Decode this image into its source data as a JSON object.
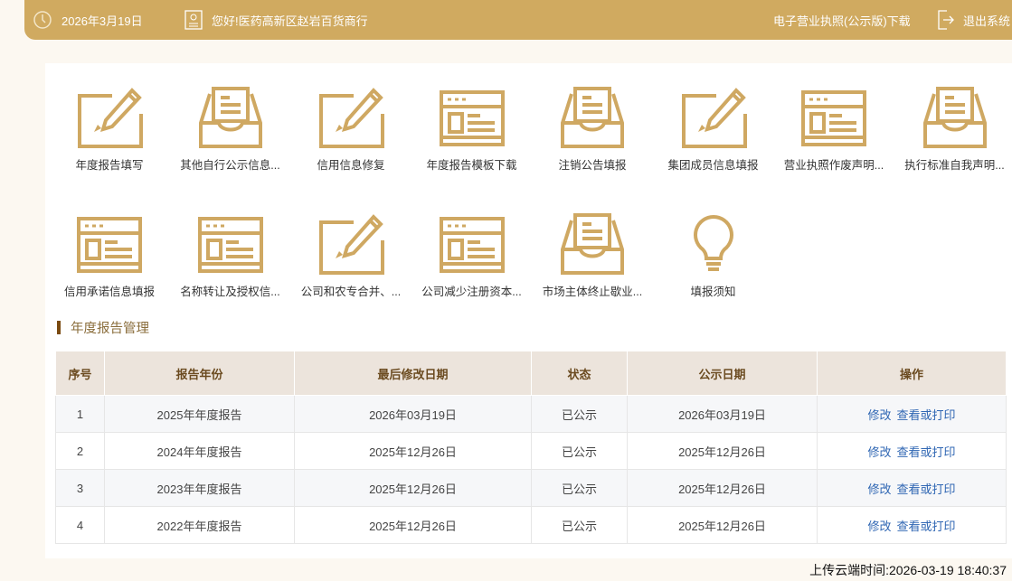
{
  "header": {
    "date": "2026年3月19日",
    "greeting": "您好!医药高新区赵岩百货商行",
    "license_link": "电子营业执照(公示版)下载",
    "logout": "退出系统",
    "bg_color": "#d0aa60"
  },
  "tiles": [
    {
      "label": "年度报告填写",
      "icon": "pencil"
    },
    {
      "label": "其他自行公示信息...",
      "icon": "inbox"
    },
    {
      "label": "信用信息修复",
      "icon": "pencil"
    },
    {
      "label": "年度报告模板下载",
      "icon": "window"
    },
    {
      "label": "注销公告填报",
      "icon": "inbox"
    },
    {
      "label": "集团成员信息填报",
      "icon": "pencil"
    },
    {
      "label": "营业执照作废声明...",
      "icon": "window"
    },
    {
      "label": "执行标准自我声明...",
      "icon": "inbox"
    },
    {
      "label": "信用承诺信息填报",
      "icon": "window"
    },
    {
      "label": "名称转让及授权信...",
      "icon": "window"
    },
    {
      "label": "公司和农专合并、...",
      "icon": "pencil"
    },
    {
      "label": "公司减少注册资本...",
      "icon": "window"
    },
    {
      "label": "市场主体终止歇业...",
      "icon": "inbox"
    },
    {
      "label": "填报须知",
      "icon": "bulb"
    }
  ],
  "section_title": "年度报告管理",
  "table": {
    "headers": [
      "序号",
      "报告年份",
      "最后修改日期",
      "状态",
      "公示日期",
      "操作"
    ],
    "rows": [
      [
        "1",
        "2025年年度报告",
        "2026年03月19日",
        "已公示",
        "2026年03月19日"
      ],
      [
        "2",
        "2024年年度报告",
        "2025年12月26日",
        "已公示",
        "2025年12月26日"
      ],
      [
        "3",
        "2023年年度报告",
        "2025年12月26日",
        "已公示",
        "2025年12月26日"
      ],
      [
        "4",
        "2022年年度报告",
        "2025年12月26日",
        "已公示",
        "2025年12月26日"
      ]
    ],
    "action_edit": "修改",
    "action_view": "查看或打印"
  },
  "footer": "上传云端时间:2026-03-19 18:40:37",
  "icon_color": "#cfa862",
  "link_color": "#2f66b3"
}
